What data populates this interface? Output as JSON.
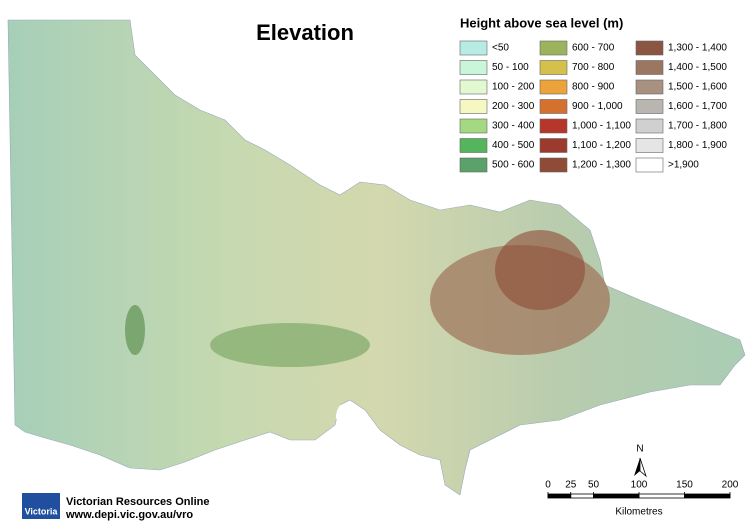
{
  "title": "Elevation",
  "legend": {
    "title": "Height above sea level (m)",
    "items": [
      {
        "label": "<50",
        "color": "#b6ece4"
      },
      {
        "label": "50 - 100",
        "color": "#c9f5d9"
      },
      {
        "label": "100 - 200",
        "color": "#e2f8d0"
      },
      {
        "label": "200 - 300",
        "color": "#f6f8c4"
      },
      {
        "label": "300 - 400",
        "color": "#a4d981"
      },
      {
        "label": "400 - 500",
        "color": "#55b55c"
      },
      {
        "label": "500 - 600",
        "color": "#5aa16a"
      },
      {
        "label": "600 - 700",
        "color": "#9cb35e"
      },
      {
        "label": "700 - 800",
        "color": "#d6c04c"
      },
      {
        "label": "800 - 900",
        "color": "#eba33a"
      },
      {
        "label": "900 - 1,000",
        "color": "#d5712f"
      },
      {
        "label": "1,000 - 1,100",
        "color": "#b5372b"
      },
      {
        "label": "1,100 - 1,200",
        "color": "#9c3b2d"
      },
      {
        "label": "1,200 - 1,300",
        "color": "#8f4b36"
      },
      {
        "label": "1,300 - 1,400",
        "color": "#8b5641"
      },
      {
        "label": "1,400 - 1,500",
        "color": "#9b7661"
      },
      {
        "label": "1,500 - 1,600",
        "color": "#a99181"
      },
      {
        "label": "1,600 - 1,700",
        "color": "#b9b5b1"
      },
      {
        "label": "1,700 - 1,800",
        "color": "#d0d0d0"
      },
      {
        "label": "1,800 - 1,900",
        "color": "#e5e5e5"
      },
      {
        "label": ">1,900",
        "color": "#ffffff"
      }
    ]
  },
  "north_arrow": {
    "label": "N"
  },
  "scale_bar": {
    "ticks": [
      0,
      25,
      50,
      100,
      150,
      200
    ],
    "unit": "Kilometres"
  },
  "logo": {
    "text": "Victoria"
  },
  "credits": {
    "name": "Victorian Resources Online",
    "url": "www.depi.vic.gov.au/vro"
  }
}
